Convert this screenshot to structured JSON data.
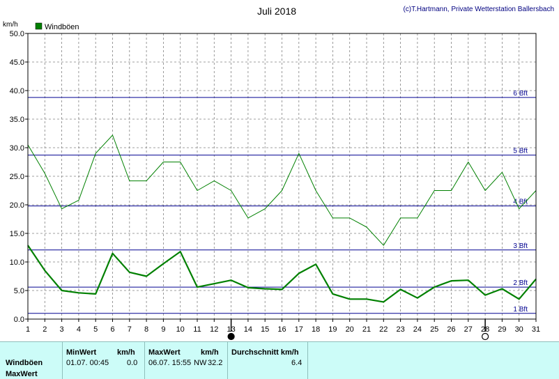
{
  "header": {
    "title": "Juli 2018",
    "credit": "(c)T.Hartmann, Private Wetterstation Ballersbach",
    "unit_label": "km/h",
    "legend_label": "Windböen"
  },
  "colors": {
    "series": "#008000",
    "beaufort": "#000090",
    "grid": "#808080",
    "panel_bg": "#ccfcf8"
  },
  "chart_data": {
    "type": "line",
    "title": "Juli 2018",
    "ylabel": "km/h",
    "ylim": [
      0,
      50
    ],
    "yticks": [
      "0.0",
      "5.0",
      "10.0",
      "15.0",
      "20.0",
      "25.0",
      "30.0",
      "35.0",
      "40.0",
      "45.0",
      "50.0"
    ],
    "x": [
      1,
      2,
      3,
      4,
      5,
      6,
      7,
      8,
      9,
      10,
      11,
      12,
      13,
      14,
      15,
      16,
      17,
      18,
      19,
      20,
      21,
      22,
      23,
      24,
      25,
      26,
      27,
      28,
      29,
      30,
      31
    ],
    "grid": true,
    "legend": "top-left",
    "series": [
      {
        "name": "Windböen",
        "role": "max",
        "values": [
          30.5,
          25.5,
          19.3,
          20.8,
          29.0,
          32.2,
          24.2,
          24.2,
          27.5,
          27.5,
          22.5,
          24.2,
          22.5,
          17.7,
          19.3,
          22.5,
          29.0,
          22.5,
          17.7,
          17.7,
          16.1,
          12.9,
          17.7,
          17.7,
          22.5,
          22.5,
          27.5,
          22.5,
          25.7,
          19.3,
          22.5
        ]
      },
      {
        "role": "mean",
        "values": [
          12.9,
          8.5,
          5.0,
          4.6,
          4.4,
          11.5,
          8.2,
          7.5,
          9.7,
          11.8,
          5.6,
          6.2,
          6.8,
          5.5,
          5.3,
          5.2,
          8.0,
          9.6,
          4.4,
          3.5,
          3.5,
          3.0,
          5.2,
          3.7,
          5.6,
          6.7,
          6.8,
          4.2,
          5.3,
          3.5,
          7.0
        ]
      }
    ],
    "beaufort_lines": [
      {
        "label": "1 Bft",
        "value": 1.0
      },
      {
        "label": "2 Bft",
        "value": 5.6
      },
      {
        "label": "3 Bft",
        "value": 12.1
      },
      {
        "label": "4 Bft",
        "value": 19.8
      },
      {
        "label": "5 Bft",
        "value": 28.7
      },
      {
        "label": "6 Bft",
        "value": 38.8
      }
    ],
    "moon_phases": [
      {
        "day": 13,
        "phase": "new"
      },
      {
        "day": 28,
        "phase": "full"
      }
    ]
  },
  "stats": {
    "row_labels": [
      "Windböen",
      "MaxWert"
    ],
    "min_header": "MinWert",
    "min_unit": "km/h",
    "min_time": "01.07.  00:45",
    "min_value": "0.0",
    "max_header": "MaxWert",
    "max_unit": "km/h",
    "max_time": "06.07.  15:55",
    "max_dir": "NW",
    "max_value": "32.2",
    "avg_header": "Durchschnitt km/h",
    "avg_value": "6.4"
  }
}
